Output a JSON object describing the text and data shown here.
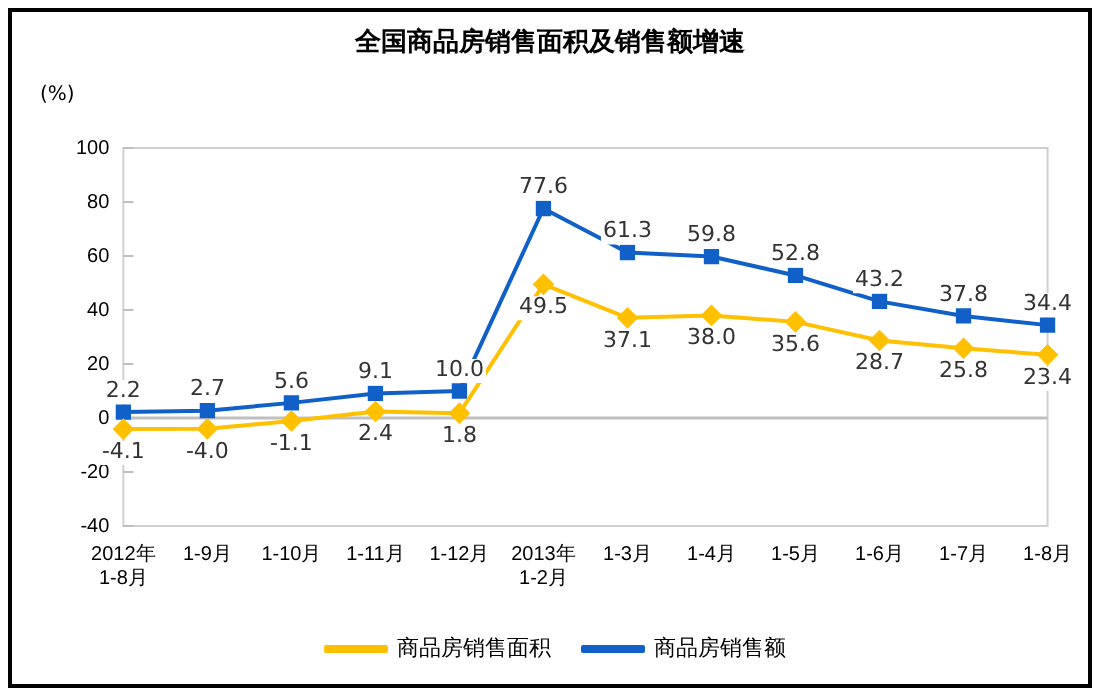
{
  "chart_data": {
    "type": "line",
    "title": "全国商品房销售面积及销售额增速",
    "ylabel": "(%)",
    "categories": [
      "2012年\n1-8月",
      "1-9月",
      "1-10月",
      "1-11月",
      "1-12月",
      "2013年\n1-2月",
      "1-3月",
      "1-4月",
      "1-5月",
      "1-6月",
      "1-7月",
      "1-8月"
    ],
    "series": [
      {
        "name": "商品房销售面积",
        "color": "#ffc000",
        "marker": "diamond",
        "values": [
          -4.1,
          -4.0,
          -1.1,
          2.4,
          1.8,
          49.5,
          37.1,
          38.0,
          35.6,
          28.7,
          25.8,
          23.4
        ],
        "value_labels": [
          "-4.1",
          "-4.0",
          "-1.1",
          "2.4",
          "1.8",
          "49.5",
          "37.1",
          "38.0",
          "35.6",
          "28.7",
          "25.8",
          "23.4"
        ]
      },
      {
        "name": "商品房销售额",
        "color": "#1060c8",
        "marker": "square",
        "values": [
          2.2,
          2.7,
          5.6,
          9.1,
          10.0,
          77.6,
          61.3,
          59.8,
          52.8,
          43.2,
          37.8,
          34.4
        ],
        "value_labels": [
          "2.2",
          "2.7",
          "5.6",
          "9.1",
          "10.0",
          "77.6",
          "61.3",
          "59.8",
          "52.8",
          "43.2",
          "37.8",
          "34.4"
        ]
      }
    ],
    "ylim": [
      -40,
      100
    ],
    "yticks": [
      -40,
      -20,
      0,
      20,
      40,
      60,
      80,
      100
    ],
    "ref_lines": [
      {
        "axis": "y",
        "value": 0,
        "color": "#bfbfbf"
      }
    ],
    "grid": false,
    "legend": "bottom"
  }
}
